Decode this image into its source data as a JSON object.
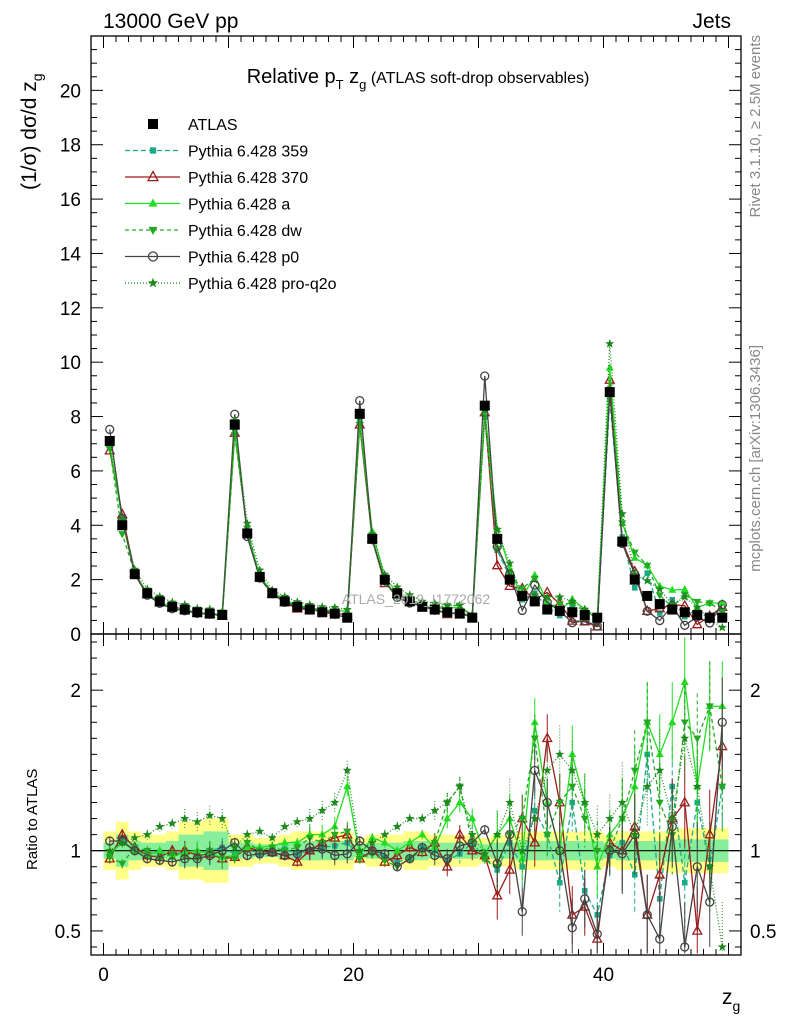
{
  "header": {
    "left": "13000 GeV pp",
    "right": "Jets",
    "side_top": "Rivet 3.1.10, ≥ 2.5M events",
    "side_bottom": "mcplots.cern.ch [arXiv:1306.3436]",
    "watermark": "ATLAS_2019_I1772062"
  },
  "chart_data": {
    "type": "scatter",
    "title_main": "Relative p",
    "title_sub_T": "T",
    "title_z": " z",
    "title_sub_g": "g",
    "title_tail": " (ATLAS soft-drop observables)",
    "ylabel": "(1/σ) dσ/d z",
    "ylabel_sub": "g",
    "ratio_ylabel": "Ratio to ATLAS",
    "xlabel": "z",
    "xlabel_sub": "g",
    "xlim": [
      -1,
      51
    ],
    "ylim": [
      0,
      22
    ],
    "ratio_ylim": [
      0.35,
      2.35
    ],
    "x_ticks": [
      "0",
      "20",
      "40"
    ],
    "y_ticks": [
      "0",
      "2",
      "4",
      "6",
      "8",
      "10",
      "12",
      "14",
      "16",
      "18",
      "20"
    ],
    "ratio_ticks": [
      "0.5",
      "1",
      "2"
    ],
    "bins": [
      0.5,
      1.5,
      2.5,
      3.5,
      4.5,
      5.5,
      6.5,
      7.5,
      8.5,
      9.5,
      10.5,
      11.5,
      12.5,
      13.5,
      14.5,
      15.5,
      16.5,
      17.5,
      18.5,
      19.5,
      20.5,
      21.5,
      22.5,
      23.5,
      24.5,
      25.5,
      26.5,
      27.5,
      28.5,
      29.5,
      30.5,
      31.5,
      32.5,
      33.5,
      34.5,
      35.5,
      36.5,
      37.5,
      38.5,
      39.5,
      40.5,
      41.5,
      42.5,
      43.5,
      44.5,
      45.5,
      46.5,
      47.5,
      48.5,
      49.5
    ],
    "atlas": [
      7.1,
      4.0,
      2.2,
      1.5,
      1.2,
      1.0,
      0.9,
      0.8,
      0.75,
      0.7,
      7.7,
      3.7,
      2.1,
      1.5,
      1.2,
      1.0,
      0.9,
      0.8,
      0.75,
      0.6,
      8.1,
      3.5,
      2.0,
      1.5,
      1.2,
      1.0,
      0.9,
      0.8,
      0.75,
      0.6,
      8.4,
      3.5,
      2.0,
      1.4,
      1.2,
      0.9,
      0.85,
      0.8,
      0.7,
      0.6,
      8.9,
      3.4,
      2.0,
      1.4,
      1.1,
      0.9,
      0.8,
      0.7,
      0.6,
      0.6
    ],
    "series": [
      {
        "name": "ATLAS",
        "color": "#000000",
        "marker": "square",
        "dash": "none"
      },
      {
        "name": "Pythia 6.428 359",
        "color": "#1aaa8a",
        "marker": "smallsquare",
        "dash": "5,3",
        "ratio": [
          0.97,
          1.08,
          1.02,
          0.98,
          0.99,
          0.97,
          1.0,
          0.99,
          1.0,
          1.02,
          0.98,
          1.02,
          0.97,
          0.99,
          1.01,
          0.98,
          1.0,
          1.02,
          1.03,
          1.05,
          0.97,
          0.99,
          0.96,
          0.93,
          0.95,
          1.02,
          1.0,
          0.94,
          0.98,
          1.05,
          0.95,
          0.88,
          1.05,
          0.9,
          1.25,
          1.1,
          0.8,
          1.3,
          0.75,
          0.6,
          0.97,
          1.05,
          0.85,
          1.6,
          0.7,
          1.4,
          0.8,
          1.3,
          0.9,
          1.4
        ]
      },
      {
        "name": "Pythia 6.428 370",
        "color": "#9b1b1b",
        "marker": "opentriangle",
        "dash": "none",
        "ratio": [
          0.95,
          1.1,
          1.02,
          0.97,
          0.96,
          1.0,
          1.0,
          0.97,
          0.98,
          0.95,
          0.96,
          1.02,
          1.0,
          0.99,
          0.97,
          0.93,
          1.0,
          1.05,
          1.08,
          1.1,
          0.95,
          1.0,
          0.93,
          0.97,
          1.02,
          0.99,
          1.05,
          0.9,
          1.1,
          1.0,
          0.97,
          0.72,
          0.88,
          1.2,
          1.05,
          1.7,
          1.3,
          0.6,
          0.65,
          0.45,
          1.05,
          1.0,
          1.15,
          0.6,
          0.85,
          1.2,
          1.3,
          0.5,
          1.1,
          1.65
        ]
      },
      {
        "name": "Pythia 6.428 a",
        "color": "#22dd22",
        "marker": "triangle",
        "dash": "none",
        "ratio": [
          0.98,
          1.05,
          1.0,
          0.97,
          1.0,
          0.96,
          0.99,
          1.0,
          0.98,
          0.96,
          0.97,
          1.02,
          1.02,
          1.03,
          1.05,
          1.05,
          1.1,
          1.1,
          1.15,
          1.4,
          0.97,
          1.08,
          1.05,
          1.0,
          1.05,
          1.1,
          1.02,
          1.2,
          1.3,
          1.2,
          0.98,
          1.1,
          1.2,
          0.95,
          1.8,
          1.3,
          1.0,
          1.6,
          1.3,
          0.9,
          1.1,
          1.2,
          1.4,
          1.8,
          1.6,
          1.8,
          2.05,
          1.4,
          1.9,
          1.9
        ]
      },
      {
        "name": "Pythia 6.428 dw",
        "color": "#22aa22",
        "marker": "downtriangle",
        "dash": "4,3",
        "ratio": [
          0.96,
          0.92,
          1.02,
          1.0,
          0.95,
          0.98,
          0.96,
          0.95,
          1.0,
          0.97,
          0.95,
          1.05,
          1.0,
          1.02,
          1.0,
          1.02,
          1.08,
          1.05,
          1.1,
          1.12,
          0.95,
          0.98,
          0.94,
          0.9,
          0.95,
          1.0,
          1.05,
          1.3,
          1.4,
          1.05,
          0.95,
          0.9,
          1.1,
          1.2,
          1.7,
          1.1,
          1.3,
          1.4,
          1.2,
          1.0,
          1.0,
          1.2,
          1.5,
          1.8,
          1.3,
          1.1,
          1.8,
          1.7,
          1.9,
          1.4
        ]
      },
      {
        "name": "Pythia 6.428 p0",
        "color": "#444444",
        "marker": "opencircle",
        "dash": "none",
        "ratio": [
          1.06,
          1.06,
          1.0,
          0.95,
          0.94,
          0.93,
          0.95,
          0.95,
          0.97,
          1.0,
          1.05,
          0.97,
          0.98,
          0.99,
          0.97,
          0.98,
          1.02,
          1.01,
          0.97,
          0.98,
          1.06,
          1.0,
          0.98,
          0.9,
          0.95,
          1.02,
          0.97,
          0.95,
          1.03,
          1.05,
          1.13,
          0.92,
          1.1,
          0.62,
          1.5,
          1.3,
          1.0,
          0.52,
          0.7,
          0.48,
          1.0,
          0.98,
          1.1,
          0.6,
          0.45,
          1.15,
          0.4,
          0.9,
          0.68,
          1.8
        ]
      },
      {
        "name": "Pythia 6.428 pro-q2o",
        "color": "#1e8a1e",
        "marker": "star",
        "dash": "1,2",
        "ratio": [
          1.0,
          1.05,
          1.08,
          1.1,
          1.15,
          1.17,
          1.2,
          1.18,
          1.22,
          1.2,
          1.02,
          1.1,
          1.12,
          1.08,
          1.15,
          1.18,
          1.2,
          1.25,
          1.3,
          1.5,
          1.0,
          1.05,
          1.1,
          1.15,
          1.2,
          1.2,
          1.25,
          1.3,
          1.4,
          1.1,
          0.98,
          1.1,
          1.3,
          1.0,
          1.2,
          1.5,
          1.6,
          1.5,
          1.3,
          1.1,
          1.2,
          1.3,
          1.1,
          1.4,
          1.5,
          1.2,
          1.7,
          1.4,
          0.9,
          0.4
        ]
      }
    ],
    "mc_spread_yellow": [
      0.12,
      0.18,
      0.12,
      0.1,
      0.1,
      0.12,
      0.18,
      0.18,
      0.2,
      0.2,
      0.1,
      0.1,
      0.08,
      0.08,
      0.1,
      0.12,
      0.12,
      0.12,
      0.12,
      0.12,
      0.08,
      0.1,
      0.1,
      0.1,
      0.12,
      0.12,
      0.1,
      0.1,
      0.1,
      0.1,
      0.08,
      0.1,
      0.1,
      0.12,
      0.12,
      0.12,
      0.12,
      0.12,
      0.12,
      0.12,
      0.1,
      0.12,
      0.12,
      0.12,
      0.12,
      0.14,
      0.14,
      0.14,
      0.14,
      0.14
    ],
    "mc_spread_green": [
      0.05,
      0.1,
      0.06,
      0.05,
      0.05,
      0.06,
      0.1,
      0.1,
      0.12,
      0.12,
      0.05,
      0.05,
      0.04,
      0.04,
      0.05,
      0.06,
      0.06,
      0.06,
      0.06,
      0.06,
      0.04,
      0.05,
      0.05,
      0.05,
      0.06,
      0.06,
      0.05,
      0.05,
      0.05,
      0.05,
      0.04,
      0.05,
      0.05,
      0.06,
      0.06,
      0.06,
      0.06,
      0.06,
      0.06,
      0.06,
      0.05,
      0.06,
      0.06,
      0.06,
      0.06,
      0.07,
      0.07,
      0.07,
      0.07,
      0.07
    ]
  }
}
